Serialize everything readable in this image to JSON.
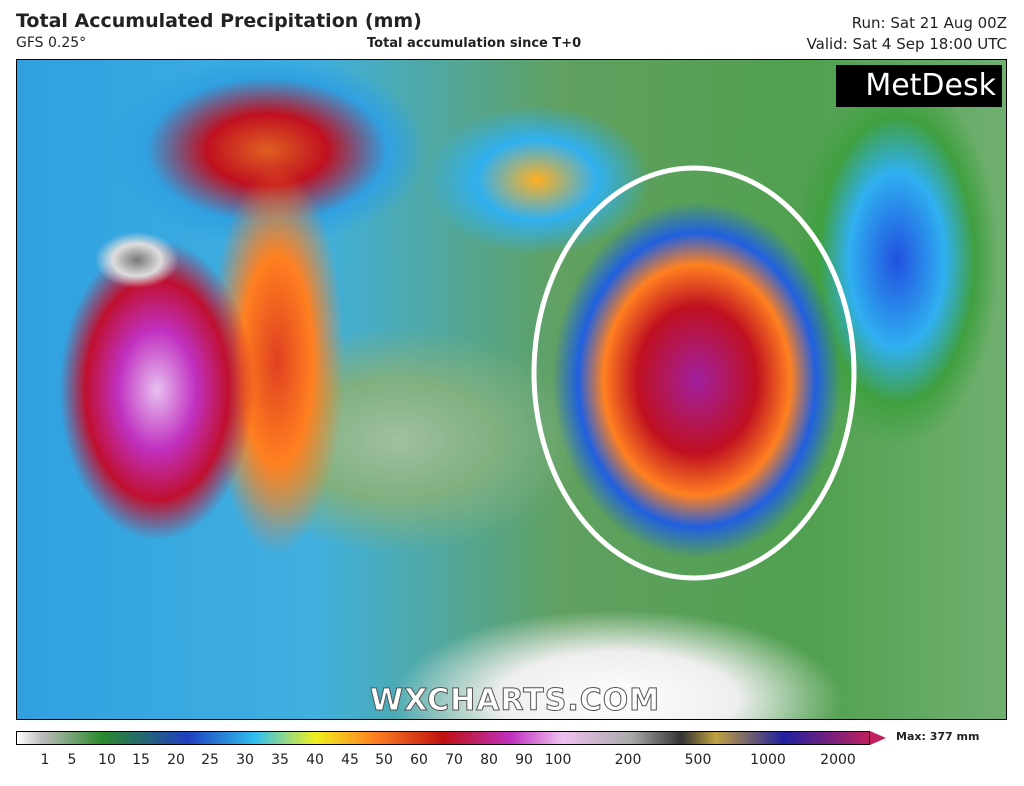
{
  "header": {
    "title": "Total Accumulated Precipitation (mm)",
    "model": "GFS 0.25°",
    "subtitle": "Total accumulation since T+0",
    "run": "Run: Sat 21 Aug 00Z",
    "valid": "Valid: Sat 4 Sep 18:00 UTC"
  },
  "logo": "MetDesk",
  "watermark": "WXCHARTS.COM",
  "legend": {
    "ticks": [
      1,
      5,
      10,
      15,
      20,
      25,
      30,
      35,
      40,
      45,
      50,
      60,
      70,
      80,
      90,
      100,
      200,
      500,
      1000,
      2000
    ],
    "max": "Max: 377 mm"
  }
}
